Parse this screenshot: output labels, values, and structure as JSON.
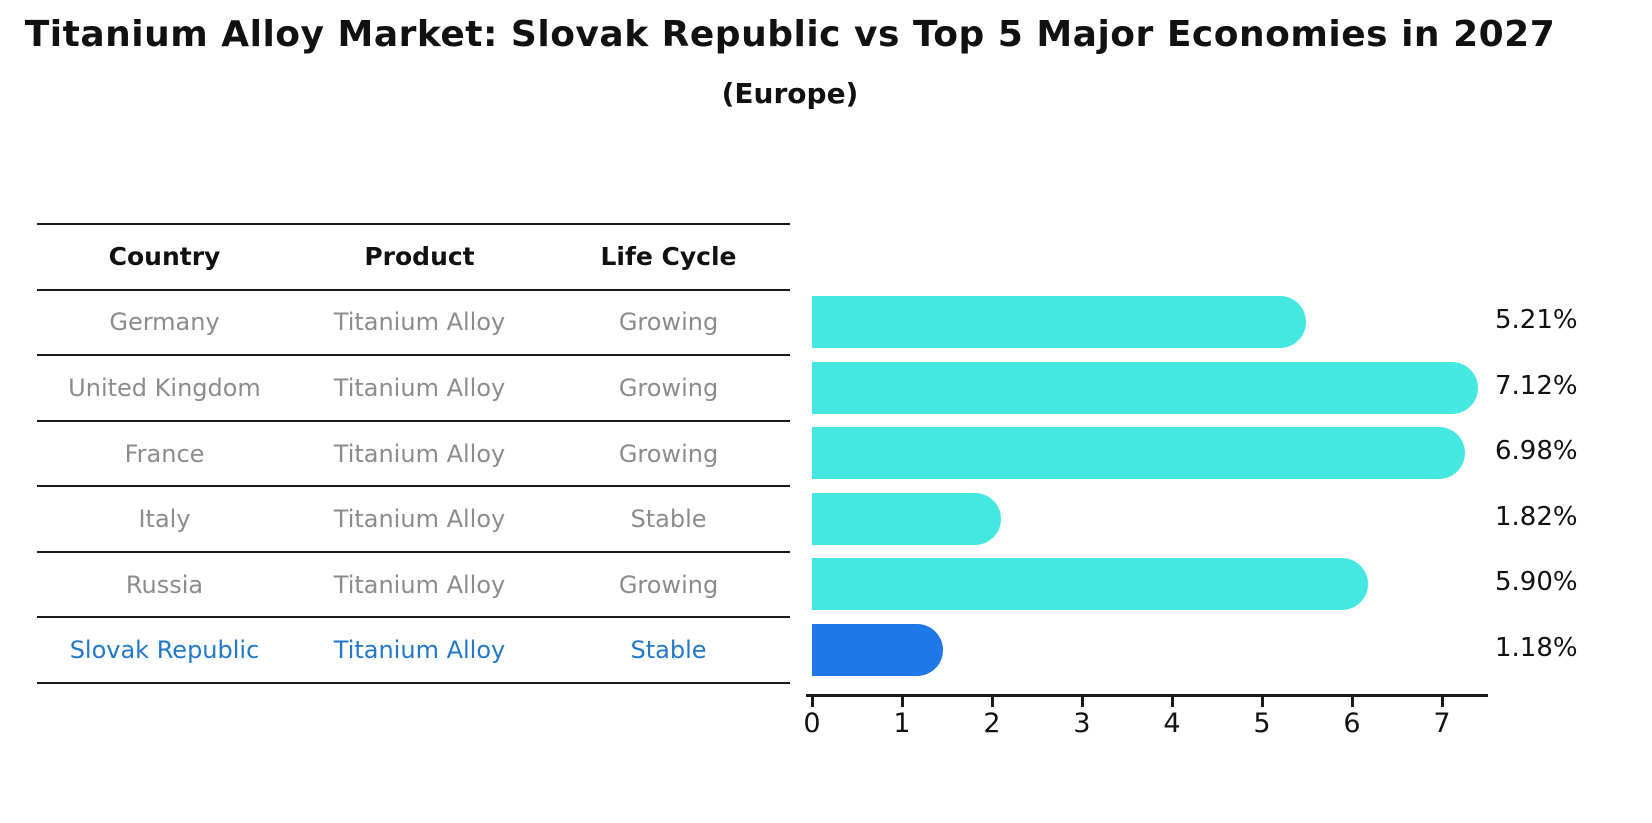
{
  "header": {
    "title": "Titanium Alloy Market: Slovak Republic vs Top 5 Major Economies in 2027",
    "subtitle": "(Europe)"
  },
  "table": {
    "columns": [
      "Country",
      "Product",
      "Life Cycle"
    ],
    "rows": [
      {
        "country": "Germany",
        "product": "Titanium Alloy",
        "life_cycle": "Growing",
        "highlight": false
      },
      {
        "country": "United Kingdom",
        "product": "Titanium Alloy",
        "life_cycle": "Growing",
        "highlight": false
      },
      {
        "country": "France",
        "product": "Titanium Alloy",
        "life_cycle": "Growing",
        "highlight": false
      },
      {
        "country": "Italy",
        "product": "Titanium Alloy",
        "life_cycle": "Stable",
        "highlight": false
      },
      {
        "country": "Russia",
        "product": "Titanium Alloy",
        "life_cycle": "Growing",
        "highlight": false
      },
      {
        "country": "Slovak Republic",
        "product": "Titanium Alloy",
        "life_cycle": "Stable",
        "highlight": true
      }
    ]
  },
  "chart_data": {
    "type": "bar",
    "orientation": "horizontal",
    "title": "Titanium Alloy Market: Slovak Republic vs Top 5 Major Economies in 2027 (Europe)",
    "categories": [
      "Germany",
      "United Kingdom",
      "France",
      "Italy",
      "Russia",
      "Slovak Republic"
    ],
    "values": [
      5.21,
      7.12,
      6.98,
      1.82,
      5.9,
      1.18
    ],
    "value_labels": [
      "5.21%",
      "7.12%",
      "6.98%",
      "1.82%",
      "5.90%",
      "1.18%"
    ],
    "x_ticks": [
      "0",
      "1",
      "2",
      "3",
      "4",
      "5",
      "6",
      "7"
    ],
    "xlim": [
      0,
      7.5
    ],
    "grid": false,
    "legend": false,
    "highlight_index": 5,
    "highlight_style": "dotted-border"
  },
  "colors": {
    "bar_default": "#45E8E0",
    "bar_highlight": "#1E78E8",
    "header_text": "#111111",
    "body_text": "#8c8c8c",
    "highlight_text": "#2478C8",
    "axis": "#1a1a1a"
  }
}
